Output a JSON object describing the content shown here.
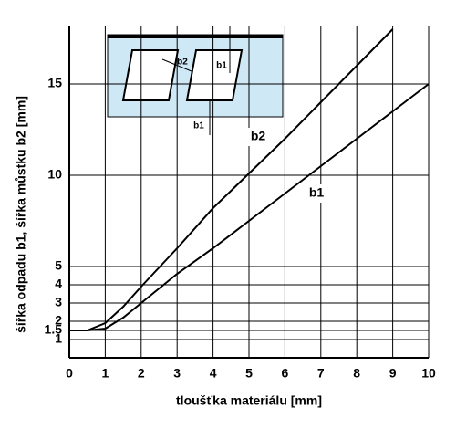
{
  "chart_data": {
    "type": "line",
    "x_label": "tloušťka materiálu [mm]",
    "y_label": "šířka odpadu b1, šířka můstku b2 [mm]",
    "annotations": [
      "b2",
      "b1"
    ],
    "inset_labels": [
      "b2",
      "b1",
      "b1"
    ],
    "series": [
      {
        "name": "b2",
        "color": "#000000",
        "x": [
          0,
          0.5,
          1,
          1.5,
          2,
          3,
          4,
          5,
          6,
          7,
          8,
          9
        ],
        "values": [
          1.5,
          1.5,
          1.9,
          2.8,
          3.9,
          6,
          8.2,
          10.1,
          12,
          14,
          16,
          18
        ]
      },
      {
        "name": "b1",
        "color": "#000000",
        "x": [
          0,
          0.5,
          1,
          1.5,
          2,
          3,
          4,
          5,
          6,
          7,
          8,
          9,
          10
        ],
        "values": [
          1.5,
          1.5,
          1.6,
          2.2,
          3,
          4.6,
          6,
          7.5,
          9,
          10.5,
          12,
          13.5,
          15
        ]
      }
    ],
    "xlim": [
      0,
      10
    ],
    "xticks": [
      0,
      1,
      2,
      3,
      4,
      5,
      6,
      7,
      8,
      9,
      10
    ],
    "ylim": [
      0,
      18.2
    ],
    "yticks": [
      1,
      1.5,
      2,
      3,
      4,
      5,
      10,
      15
    ],
    "grid": true
  }
}
